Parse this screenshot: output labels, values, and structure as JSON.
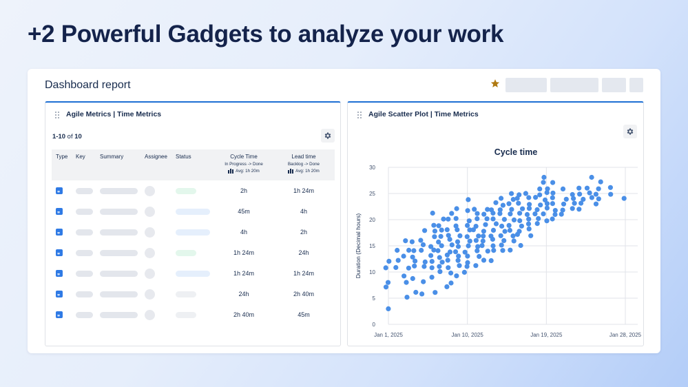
{
  "hero": {
    "title": "+2 Powerful Gadgets to analyze your work"
  },
  "dashboard": {
    "title": "Dashboard report",
    "star_color": "#b07a12"
  },
  "left_gadget": {
    "title": "Agile Metrics | Time Metrics",
    "count_prefix": "1-10",
    "count_of": "of",
    "count_total": "10",
    "columns": {
      "type": "Type",
      "key": "Key",
      "summary": "Summary",
      "assignee": "Assignee",
      "status": "Status",
      "cycle_time": "Cycle Time",
      "cycle_sub": "In Progress -> Done",
      "cycle_avg": "Avg: 1h 20m",
      "lead_time": "Lead time",
      "lead_sub": "Backlog -> Done",
      "lead_avg": "Avg: 1h 20m"
    },
    "rows": [
      {
        "cycle": "2h",
        "lead": "1h 24m",
        "status_color": "#e3f7ec"
      },
      {
        "cycle": "45m",
        "lead": "4h",
        "status_color": "#e5effc"
      },
      {
        "cycle": "4h",
        "lead": "2h",
        "status_color": "#e5effc"
      },
      {
        "cycle": "1h 24m",
        "lead": "24h",
        "status_color": "#e3f7ec"
      },
      {
        "cycle": "1h 24m",
        "lead": "1h 24m",
        "status_color": "#e5effc"
      },
      {
        "cycle": "24h",
        "lead": "2h 40m",
        "status_color": "#eef0f3"
      },
      {
        "cycle": "2h 40m",
        "lead": "45m",
        "status_color": "#eef0f3"
      }
    ]
  },
  "right_gadget": {
    "title": "Agile Scatter Plot | Time Metrics"
  },
  "chart_data": {
    "type": "scatter",
    "title": "Cycle time",
    "xlabel": "",
    "ylabel": "Duration (Decimal hours)",
    "x_ticks": [
      "Jan 1, 2025",
      "Jan 10, 2025",
      "Jan 19, 2025",
      "Jan 28, 2025"
    ],
    "y_ticks": [
      0,
      5,
      10,
      15,
      20,
      25,
      30
    ],
    "xlim": [
      "2025-01-01",
      "2025-01-28"
    ],
    "ylim": [
      0,
      30
    ],
    "grid": true,
    "point_color": "#4a8fe7",
    "points": [
      [
        "2025-01-01",
        3
      ],
      [
        "2025-01-01",
        7
      ],
      [
        "2025-01-01",
        8
      ],
      [
        "2025-01-01",
        11
      ],
      [
        "2025-01-01",
        12
      ],
      [
        "2025-01-02",
        11
      ],
      [
        "2025-01-02",
        12
      ],
      [
        "2025-01-02",
        14
      ],
      [
        "2025-01-03",
        5
      ],
      [
        "2025-01-03",
        8
      ],
      [
        "2025-01-03",
        9
      ],
      [
        "2025-01-03",
        11
      ],
      [
        "2025-01-03",
        13
      ],
      [
        "2025-01-03",
        14
      ],
      [
        "2025-01-03",
        16
      ],
      [
        "2025-01-04",
        6
      ],
      [
        "2025-01-04",
        9
      ],
      [
        "2025-01-04",
        11
      ],
      [
        "2025-01-04",
        12
      ],
      [
        "2025-01-04",
        13
      ],
      [
        "2025-01-04",
        14
      ],
      [
        "2025-01-04",
        16
      ],
      [
        "2025-01-05",
        6
      ],
      [
        "2025-01-05",
        8
      ],
      [
        "2025-01-05",
        11
      ],
      [
        "2025-01-05",
        12
      ],
      [
        "2025-01-05",
        14
      ],
      [
        "2025-01-05",
        15
      ],
      [
        "2025-01-05",
        16
      ],
      [
        "2025-01-05",
        18
      ],
      [
        "2025-01-06",
        6
      ],
      [
        "2025-01-06",
        9
      ],
      [
        "2025-01-06",
        11
      ],
      [
        "2025-01-06",
        12
      ],
      [
        "2025-01-06",
        13
      ],
      [
        "2025-01-06",
        14
      ],
      [
        "2025-01-06",
        15
      ],
      [
        "2025-01-06",
        17
      ],
      [
        "2025-01-06",
        18
      ],
      [
        "2025-01-06",
        19
      ],
      [
        "2025-01-06",
        21
      ],
      [
        "2025-01-07",
        10
      ],
      [
        "2025-01-07",
        11
      ],
      [
        "2025-01-07",
        12
      ],
      [
        "2025-01-07",
        13
      ],
      [
        "2025-01-07",
        14
      ],
      [
        "2025-01-07",
        15
      ],
      [
        "2025-01-07",
        16
      ],
      [
        "2025-01-07",
        17
      ],
      [
        "2025-01-07",
        18
      ],
      [
        "2025-01-07",
        19
      ],
      [
        "2025-01-07",
        20
      ],
      [
        "2025-01-08",
        7
      ],
      [
        "2025-01-08",
        8
      ],
      [
        "2025-01-08",
        10
      ],
      [
        "2025-01-08",
        11
      ],
      [
        "2025-01-08",
        12
      ],
      [
        "2025-01-08",
        13
      ],
      [
        "2025-01-08",
        14
      ],
      [
        "2025-01-08",
        15
      ],
      [
        "2025-01-08",
        16
      ],
      [
        "2025-01-08",
        17
      ],
      [
        "2025-01-08",
        18
      ],
      [
        "2025-01-08",
        20
      ],
      [
        "2025-01-08",
        21
      ],
      [
        "2025-01-09",
        9
      ],
      [
        "2025-01-09",
        11
      ],
      [
        "2025-01-09",
        12
      ],
      [
        "2025-01-09",
        13
      ],
      [
        "2025-01-09",
        14
      ],
      [
        "2025-01-09",
        15
      ],
      [
        "2025-01-09",
        16
      ],
      [
        "2025-01-09",
        17
      ],
      [
        "2025-01-09",
        18
      ],
      [
        "2025-01-09",
        19
      ],
      [
        "2025-01-09",
        20
      ],
      [
        "2025-01-09",
        22
      ],
      [
        "2025-01-10",
        10
      ],
      [
        "2025-01-10",
        11
      ],
      [
        "2025-01-10",
        12
      ],
      [
        "2025-01-10",
        13
      ],
      [
        "2025-01-10",
        14
      ],
      [
        "2025-01-10",
        15
      ],
      [
        "2025-01-10",
        16
      ],
      [
        "2025-01-10",
        17
      ],
      [
        "2025-01-10",
        18
      ],
      [
        "2025-01-10",
        19
      ],
      [
        "2025-01-10",
        20
      ],
      [
        "2025-01-10",
        22
      ],
      [
        "2025-01-10",
        24
      ],
      [
        "2025-01-11",
        11
      ],
      [
        "2025-01-11",
        13
      ],
      [
        "2025-01-11",
        14
      ],
      [
        "2025-01-11",
        15
      ],
      [
        "2025-01-11",
        16
      ],
      [
        "2025-01-11",
        17
      ],
      [
        "2025-01-11",
        18
      ],
      [
        "2025-01-11",
        19
      ],
      [
        "2025-01-11",
        20
      ],
      [
        "2025-01-11",
        21
      ],
      [
        "2025-01-11",
        22
      ],
      [
        "2025-01-12",
        12
      ],
      [
        "2025-01-12",
        14
      ],
      [
        "2025-01-12",
        15
      ],
      [
        "2025-01-12",
        16
      ],
      [
        "2025-01-12",
        17
      ],
      [
        "2025-01-12",
        18
      ],
      [
        "2025-01-12",
        19
      ],
      [
        "2025-01-12",
        20
      ],
      [
        "2025-01-12",
        21
      ],
      [
        "2025-01-12",
        22
      ],
      [
        "2025-01-13",
        12
      ],
      [
        "2025-01-13",
        14
      ],
      [
        "2025-01-13",
        15
      ],
      [
        "2025-01-13",
        16
      ],
      [
        "2025-01-13",
        17
      ],
      [
        "2025-01-13",
        18
      ],
      [
        "2025-01-13",
        19
      ],
      [
        "2025-01-13",
        20
      ],
      [
        "2025-01-13",
        21
      ],
      [
        "2025-01-13",
        22
      ],
      [
        "2025-01-13",
        23
      ],
      [
        "2025-01-14",
        14
      ],
      [
        "2025-01-14",
        15
      ],
      [
        "2025-01-14",
        16
      ],
      [
        "2025-01-14",
        17
      ],
      [
        "2025-01-14",
        18
      ],
      [
        "2025-01-14",
        19
      ],
      [
        "2025-01-14",
        20
      ],
      [
        "2025-01-14",
        21
      ],
      [
        "2025-01-14",
        22
      ],
      [
        "2025-01-14",
        23
      ],
      [
        "2025-01-14",
        24
      ],
      [
        "2025-01-15",
        14
      ],
      [
        "2025-01-15",
        16
      ],
      [
        "2025-01-15",
        17
      ],
      [
        "2025-01-15",
        18
      ],
      [
        "2025-01-15",
        19
      ],
      [
        "2025-01-15",
        20
      ],
      [
        "2025-01-15",
        21
      ],
      [
        "2025-01-15",
        22
      ],
      [
        "2025-01-15",
        23
      ],
      [
        "2025-01-15",
        24
      ],
      [
        "2025-01-15",
        25
      ],
      [
        "2025-01-16",
        15
      ],
      [
        "2025-01-16",
        17
      ],
      [
        "2025-01-16",
        18
      ],
      [
        "2025-01-16",
        19
      ],
      [
        "2025-01-16",
        20
      ],
      [
        "2025-01-16",
        21
      ],
      [
        "2025-01-16",
        22
      ],
      [
        "2025-01-16",
        23
      ],
      [
        "2025-01-16",
        24
      ],
      [
        "2025-01-16",
        25
      ],
      [
        "2025-01-17",
        17
      ],
      [
        "2025-01-17",
        18
      ],
      [
        "2025-01-17",
        19
      ],
      [
        "2025-01-17",
        20
      ],
      [
        "2025-01-17",
        21
      ],
      [
        "2025-01-17",
        22
      ],
      [
        "2025-01-17",
        23
      ],
      [
        "2025-01-17",
        24
      ],
      [
        "2025-01-17",
        25
      ],
      [
        "2025-01-18",
        19
      ],
      [
        "2025-01-18",
        20
      ],
      [
        "2025-01-18",
        21
      ],
      [
        "2025-01-18",
        22
      ],
      [
        "2025-01-18",
        23
      ],
      [
        "2025-01-18",
        24
      ],
      [
        "2025-01-18",
        25
      ],
      [
        "2025-01-18",
        26
      ],
      [
        "2025-01-19",
        20
      ],
      [
        "2025-01-19",
        21
      ],
      [
        "2025-01-19",
        22
      ],
      [
        "2025-01-19",
        23
      ],
      [
        "2025-01-19",
        24
      ],
      [
        "2025-01-19",
        25
      ],
      [
        "2025-01-19",
        26
      ],
      [
        "2025-01-19",
        27
      ],
      [
        "2025-01-19",
        28
      ],
      [
        "2025-01-20",
        20
      ],
      [
        "2025-01-20",
        21
      ],
      [
        "2025-01-20",
        22
      ],
      [
        "2025-01-20",
        23
      ],
      [
        "2025-01-20",
        24
      ],
      [
        "2025-01-20",
        25
      ],
      [
        "2025-01-20",
        27
      ],
      [
        "2025-01-21",
        21
      ],
      [
        "2025-01-21",
        22
      ],
      [
        "2025-01-21",
        23
      ],
      [
        "2025-01-21",
        24
      ],
      [
        "2025-01-21",
        26
      ],
      [
        "2025-01-22",
        22
      ],
      [
        "2025-01-22",
        23
      ],
      [
        "2025-01-22",
        24
      ],
      [
        "2025-01-22",
        25
      ],
      [
        "2025-01-23",
        22
      ],
      [
        "2025-01-23",
        23
      ],
      [
        "2025-01-23",
        24
      ],
      [
        "2025-01-23",
        25
      ],
      [
        "2025-01-23",
        26
      ],
      [
        "2025-01-24",
        24
      ],
      [
        "2025-01-24",
        25
      ],
      [
        "2025-01-24",
        26
      ],
      [
        "2025-01-24",
        28
      ],
      [
        "2025-01-25",
        23
      ],
      [
        "2025-01-25",
        24
      ],
      [
        "2025-01-25",
        25
      ],
      [
        "2025-01-25",
        26
      ],
      [
        "2025-01-25",
        27
      ],
      [
        "2025-01-26",
        25
      ],
      [
        "2025-01-26",
        26
      ],
      [
        "2025-01-28",
        24
      ]
    ]
  }
}
